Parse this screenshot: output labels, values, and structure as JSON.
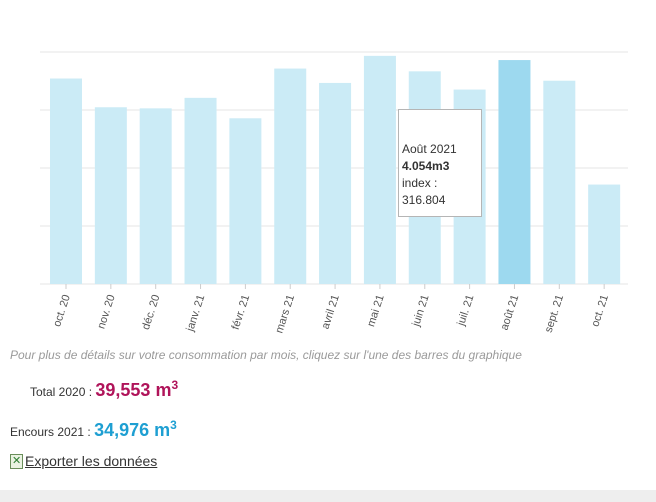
{
  "chart_data": {
    "type": "bar",
    "categories": [
      "oct. 20",
      "nov. 20",
      "déc. 20",
      "janv. 21",
      "févr. 21",
      "mars 21",
      "avril 21",
      "mai 21",
      "juin 21",
      "juil. 21",
      "août 21",
      "sept. 21",
      "oct. 21"
    ],
    "values": [
      3.72,
      3.2,
      3.18,
      3.37,
      3.0,
      3.9,
      3.64,
      4.13,
      3.85,
      3.52,
      4.054,
      3.68,
      1.8
    ],
    "ylim": [
      0,
      4.2
    ],
    "grid": true,
    "highlight_index": 10,
    "colors": {
      "bar": "#cbebf6",
      "highlight": "#9dd9ef",
      "grid": "#e6e6e6"
    }
  },
  "tooltip": {
    "month": "Août 2021",
    "value": "4.054m3",
    "index_label": "index :",
    "index_value": "316.804"
  },
  "hint_text": "Pour plus de détails sur votre consommation par mois, cliquez sur l'une des barres du graphique",
  "total": {
    "label": "Total 2020 :",
    "value": "39,553 m",
    "unit_sup": "3",
    "color": "#b0145a"
  },
  "encours": {
    "label": "Encours 2021 :",
    "value": "34,976 m",
    "unit_sup": "3",
    "color": "#1e9fd2"
  },
  "export_label": "Exporter les données",
  "export_icon": "excel-icon"
}
